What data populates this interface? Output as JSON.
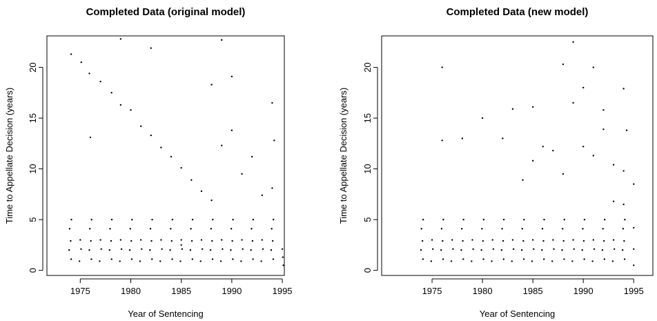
{
  "chart_data": [
    {
      "type": "scatter",
      "title": "Completed Data (original model)",
      "xlabel": "Year of Sentencing",
      "ylabel": "Time to Appellate Decision (years)",
      "color": "#000000",
      "xlim": [
        1971.7,
        1995.2
      ],
      "ylim": [
        -0.5,
        23.1
      ],
      "xticks": [
        1975,
        1980,
        1985,
        1990,
        1995
      ],
      "yticks": [
        0,
        5,
        10,
        15,
        20
      ],
      "x": [
        1974.1,
        1973.9,
        1974.05,
        1973.95,
        1974.12,
        1976.1,
        1975.9,
        1976.05,
        1975.95,
        1976.12,
        1978.1,
        1977.9,
        1978.05,
        1977.95,
        1978.12,
        1980.1,
        1979.9,
        1980.05,
        1979.95,
        1980.12,
        1982.1,
        1981.9,
        1982.05,
        1981.95,
        1982.12,
        1984.1,
        1983.9,
        1984.05,
        1983.95,
        1984.12,
        1986.1,
        1985.9,
        1986.05,
        1985.95,
        1986.12,
        1988.1,
        1987.9,
        1988.05,
        1987.95,
        1988.12,
        1990.1,
        1989.9,
        1990.05,
        1989.95,
        1990.12,
        1992.1,
        1991.9,
        1992.05,
        1991.95,
        1992.12,
        1994.1,
        1993.9,
        1994.05,
        1993.95,
        1994.12,
        1974.92,
        1975.08,
        1975,
        1976.92,
        1977.08,
        1977,
        1978.92,
        1979.08,
        1979,
        1980.92,
        1981.08,
        1981,
        1982.92,
        1983.08,
        1983,
        1984.92,
        1985.08,
        1985,
        1986.92,
        1987.08,
        1987,
        1988.92,
        1989.08,
        1989,
        1990.92,
        1991.08,
        1991,
        1992.92,
        1993.08,
        1993,
        1974.1,
        1975.1,
        1975.9,
        1977,
        1978.1,
        1979,
        1980,
        1981,
        1982,
        1983,
        1984,
        1985,
        1986,
        1987,
        1988,
        1989,
        1990,
        1991,
        1992,
        1993,
        1994,
        1994.2,
        1995,
        1995.1,
        1995.05,
        1979,
        1989,
        1982,
        1976,
        1985,
        1994,
        1990,
        1988
      ],
      "values": [
        1.1,
        2,
        2.9,
        4.1,
        5,
        1.1,
        2,
        2.9,
        4.1,
        5,
        1.1,
        2,
        2.9,
        4.1,
        5,
        1.1,
        2,
        2.9,
        4.1,
        5,
        1.1,
        2,
        2.9,
        4.1,
        5,
        1.1,
        2,
        2.9,
        4.1,
        5,
        1.1,
        2,
        2.9,
        4.1,
        5,
        1.1,
        2,
        2.9,
        4.1,
        5,
        1.1,
        2,
        2.9,
        4.1,
        5,
        1.1,
        2,
        2.9,
        4.1,
        5,
        1.1,
        2,
        2.9,
        4.1,
        5,
        0.9,
        2.1,
        3,
        0.9,
        2.1,
        3,
        0.9,
        2.1,
        3,
        0.9,
        2.1,
        3,
        0.9,
        2.1,
        3,
        0.9,
        2.1,
        3,
        0.9,
        2.1,
        3,
        0.9,
        2.1,
        3,
        0.9,
        2.1,
        3,
        0.9,
        2.1,
        3,
        21.3,
        20.5,
        19.4,
        18.6,
        17.5,
        16.3,
        15.8,
        14.2,
        13.3,
        12.1,
        11.2,
        10.1,
        8.9,
        7.8,
        6.9,
        12.3,
        13.8,
        9.5,
        11.2,
        7.4,
        16.5,
        12.8,
        2.1,
        0.5,
        1.3,
        22.8,
        22.7,
        21.9,
        13.1,
        2.5,
        8.1,
        19.1,
        18.3
      ]
    },
    {
      "type": "scatter",
      "title": "Completed Data (new model)",
      "xlabel": "Year of Sentencing",
      "ylabel": "Time to Appellate Decision (years)",
      "color": "#000000",
      "xlim": [
        1970,
        1996.9
      ],
      "ylim": [
        -0.5,
        23.1
      ],
      "xticks": [
        1975,
        1980,
        1985,
        1990,
        1995
      ],
      "yticks": [
        0,
        5,
        10,
        15,
        20
      ],
      "x": [
        1974.1,
        1973.9,
        1974.05,
        1973.95,
        1974.12,
        1976.1,
        1975.9,
        1976.05,
        1975.95,
        1976.12,
        1978.1,
        1977.9,
        1978.05,
        1977.95,
        1978.12,
        1980.1,
        1979.9,
        1980.05,
        1979.95,
        1980.12,
        1982.1,
        1981.9,
        1982.05,
        1981.95,
        1982.12,
        1984.1,
        1983.9,
        1984.05,
        1983.95,
        1984.12,
        1986.1,
        1985.9,
        1986.05,
        1985.95,
        1986.12,
        1988.1,
        1987.9,
        1988.05,
        1987.95,
        1988.12,
        1990.1,
        1989.9,
        1990.05,
        1989.95,
        1990.12,
        1992.1,
        1991.9,
        1992.05,
        1991.95,
        1992.12,
        1994.1,
        1993.9,
        1994.05,
        1993.95,
        1994.12,
        1974.92,
        1975.08,
        1975,
        1976.92,
        1977.08,
        1977,
        1978.92,
        1979.08,
        1979,
        1980.92,
        1981.08,
        1981,
        1982.92,
        1983.08,
        1983,
        1984.92,
        1985.08,
        1985,
        1986.92,
        1987.08,
        1987,
        1988.92,
        1989.08,
        1989,
        1990.92,
        1991.08,
        1991,
        1992.92,
        1993.08,
        1993,
        1976,
        1980,
        1983,
        1985,
        1988,
        1989,
        1990,
        1991,
        1992,
        1994,
        1994.3,
        1989,
        1990,
        1991,
        1992,
        1993,
        1994,
        1995,
        1987,
        1986,
        1985,
        1982,
        1978,
        1976,
        1984,
        1988,
        1993,
        1994,
        1995,
        1995,
        1995
      ],
      "values": [
        1.1,
        2,
        2.9,
        4.1,
        5,
        1.1,
        2,
        2.9,
        4.1,
        5,
        1.1,
        2,
        2.9,
        4.1,
        5,
        1.1,
        2,
        2.9,
        4.1,
        5,
        1.1,
        2,
        2.9,
        4.1,
        5,
        1.1,
        2,
        2.9,
        4.1,
        5,
        1.1,
        2,
        2.9,
        4.1,
        5,
        1.1,
        2,
        2.9,
        4.1,
        5,
        1.1,
        2,
        2.9,
        4.1,
        5,
        1.1,
        2,
        2.9,
        4.1,
        5,
        1.1,
        2,
        2.9,
        4.1,
        5,
        0.9,
        2.1,
        3,
        0.9,
        2.1,
        3,
        0.9,
        2.1,
        3,
        0.9,
        2.1,
        3,
        0.9,
        2.1,
        3,
        0.9,
        2.1,
        3,
        0.9,
        2.1,
        3,
        0.9,
        2.1,
        3,
        0.9,
        2.1,
        3,
        0.9,
        2.1,
        3,
        20,
        15,
        15.9,
        16.1,
        20.3,
        22.5,
        18,
        20,
        15.8,
        17.9,
        13.8,
        16.5,
        12.2,
        11.3,
        13.9,
        10.4,
        9.8,
        8.5,
        11.8,
        12.2,
        10.8,
        13,
        13,
        12.8,
        8.9,
        9.5,
        6.8,
        6.5,
        4.2,
        2.1,
        0.5
      ]
    }
  ]
}
